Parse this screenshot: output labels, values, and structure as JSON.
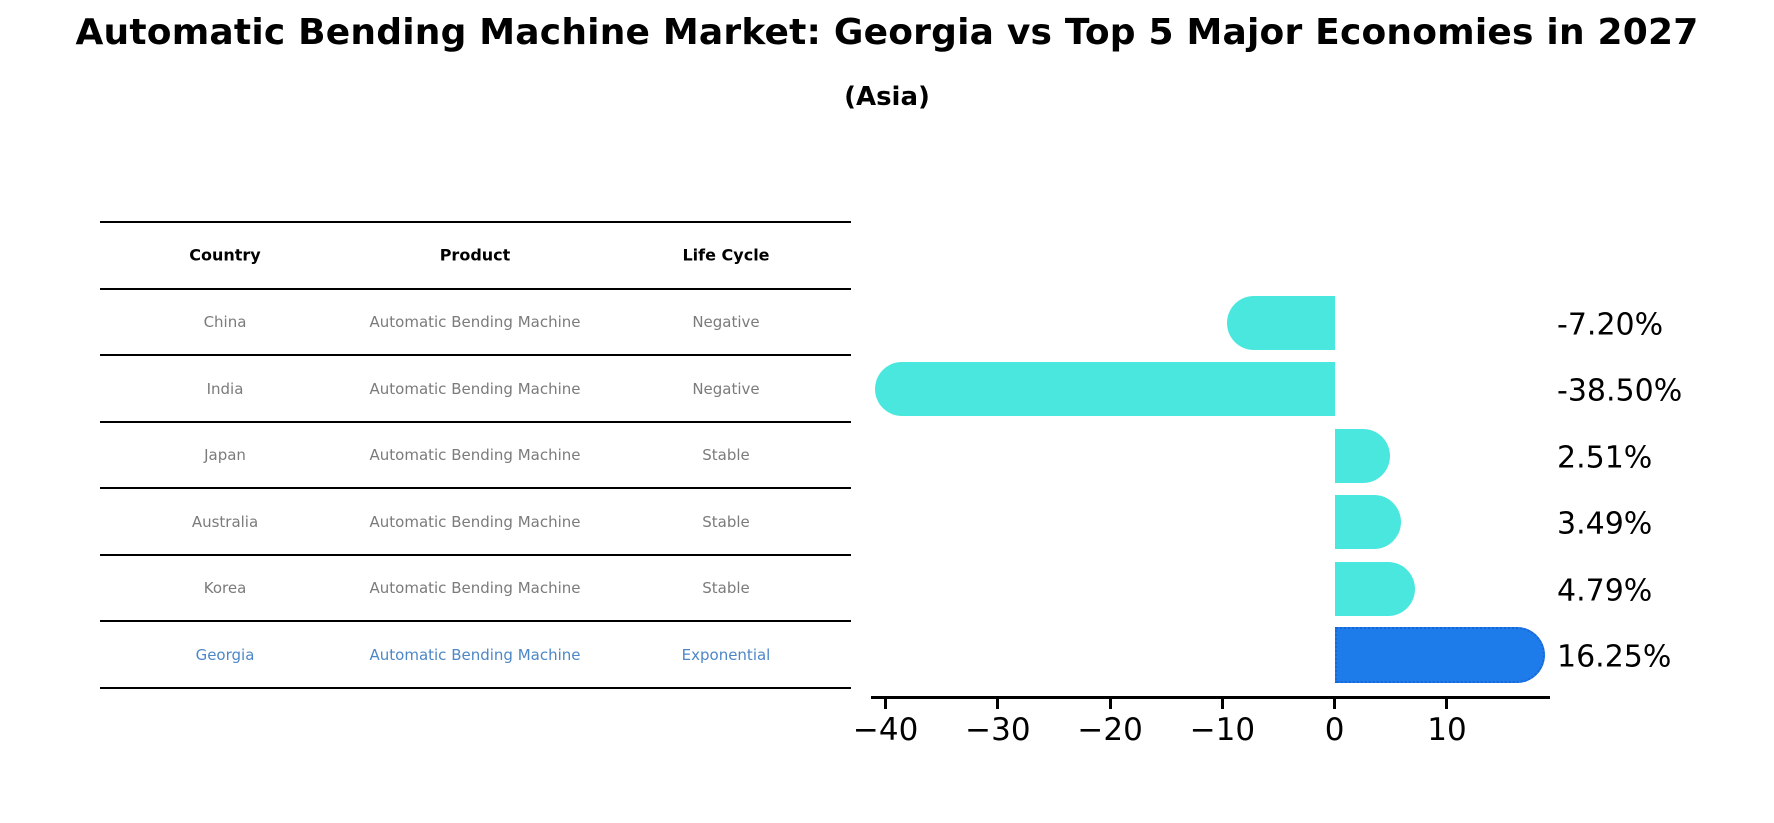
{
  "chart_data": {
    "type": "bar",
    "orientation": "horizontal",
    "title": "Automatic Bending Machine Market: Georgia vs Top 5 Major Economies in 2027",
    "subtitle": "(Asia)",
    "categories": [
      "China",
      "India",
      "Japan",
      "Australia",
      "Korea",
      "Georgia"
    ],
    "values": [
      -7.2,
      -38.5,
      2.51,
      3.49,
      4.79,
      16.25
    ],
    "value_labels": [
      "-7.20%",
      "-38.50%",
      "2.51%",
      "3.49%",
      "4.79%",
      "16.25%"
    ],
    "x_ticks": [
      -40,
      -30,
      -20,
      -10,
      0,
      10
    ],
    "x_tick_labels": [
      "−40",
      "−30",
      "−20",
      "−10",
      "0",
      "10"
    ],
    "xlim": [
      -41.3,
      19.0
    ],
    "grid": false,
    "legend": false,
    "bar_color": "#4AE7DF",
    "highlight_bar_color": "#1E7CEA",
    "highlight_index": 5,
    "highlight_text_color": "#4d87c7"
  },
  "table": {
    "headers": [
      "Country",
      "Product",
      "Life Cycle"
    ],
    "rows": [
      {
        "country": "China",
        "product": "Automatic Bending Machine",
        "life_cycle": "Negative"
      },
      {
        "country": "India",
        "product": "Automatic Bending Machine",
        "life_cycle": "Negative"
      },
      {
        "country": "Japan",
        "product": "Automatic Bending Machine",
        "life_cycle": "Stable"
      },
      {
        "country": "Australia",
        "product": "Automatic Bending Machine",
        "life_cycle": "Stable"
      },
      {
        "country": "Korea",
        "product": "Automatic Bending Machine",
        "life_cycle": "Stable"
      },
      {
        "country": "Georgia",
        "product": "Automatic Bending Machine",
        "life_cycle": "Exponential",
        "highlighted": true
      }
    ]
  }
}
